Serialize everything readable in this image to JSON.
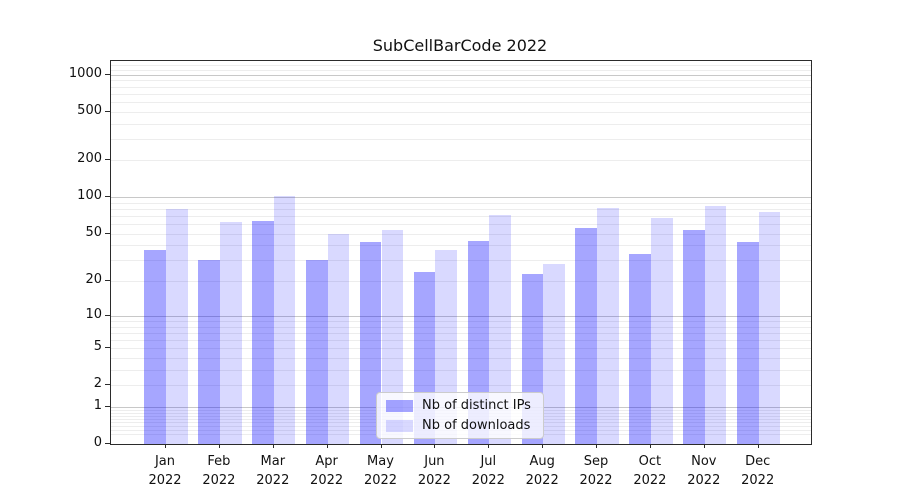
{
  "chart_data": {
    "type": "bar",
    "title": "SubCellBarCode 2022",
    "categories": [
      "Jan",
      "Feb",
      "Mar",
      "Apr",
      "May",
      "Jun",
      "Jul",
      "Aug",
      "Sep",
      "Oct",
      "Nov",
      "Dec"
    ],
    "year": "2022",
    "series": [
      {
        "name": "Nb of distinct IPs",
        "color": "rgba(0,0,255,0.35)",
        "values": [
          37,
          30,
          64,
          30,
          43,
          24,
          44,
          23,
          56,
          34,
          54,
          43
        ]
      },
      {
        "name": "Nb of downloads",
        "color": "rgba(0,0,255,0.15)",
        "values": [
          80,
          63,
          103,
          50,
          54,
          37,
          71,
          28,
          82,
          68,
          85,
          76
        ]
      }
    ],
    "yscale": "log1p",
    "yticks": [
      0,
      1,
      2,
      5,
      10,
      20,
      50,
      100,
      200,
      500,
      1000
    ],
    "ylim": [
      0,
      1290
    ],
    "grid": "horizontal major+minor",
    "legend_position": "lower center",
    "xlabel": "",
    "ylabel": ""
  }
}
